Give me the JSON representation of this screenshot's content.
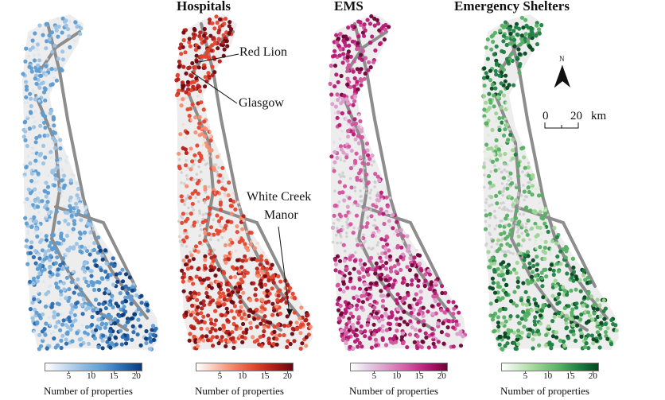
{
  "panels": [
    {
      "title": "",
      "palette": [
        "#d6e4f2",
        "#9cc2e4",
        "#5d9cd1",
        "#2a6cb0",
        "#0b3c7c"
      ]
    },
    {
      "title": "Hospitals",
      "palette": [
        "#fbd3c6",
        "#f58e73",
        "#e4452e",
        "#b51d19",
        "#6a0610"
      ]
    },
    {
      "title": "EMS",
      "palette": [
        "#e6d5ea",
        "#dba0cb",
        "#d2559e",
        "#b71874",
        "#6e0436"
      ]
    },
    {
      "title": "Emergency Shelters",
      "palette": [
        "#d6eed0",
        "#9fd496",
        "#56b064",
        "#1e8042",
        "#03471f"
      ]
    }
  ],
  "annotations": {
    "red_lion": "Red Lion",
    "glasgow": "Glasgow",
    "white_creek_1": "White Creek",
    "white_creek_2": "Manor"
  },
  "legend": {
    "ticks": [
      "5",
      "10",
      "15",
      "20"
    ],
    "label": "Number of properties",
    "min": 0,
    "max": 21
  },
  "north_arrow": {
    "label": "N"
  },
  "scale_bar": {
    "zero": "0",
    "end": "20",
    "unit": "km"
  },
  "colors": {
    "road": "#8d8d8d",
    "low_density": "#c8c8c8"
  }
}
